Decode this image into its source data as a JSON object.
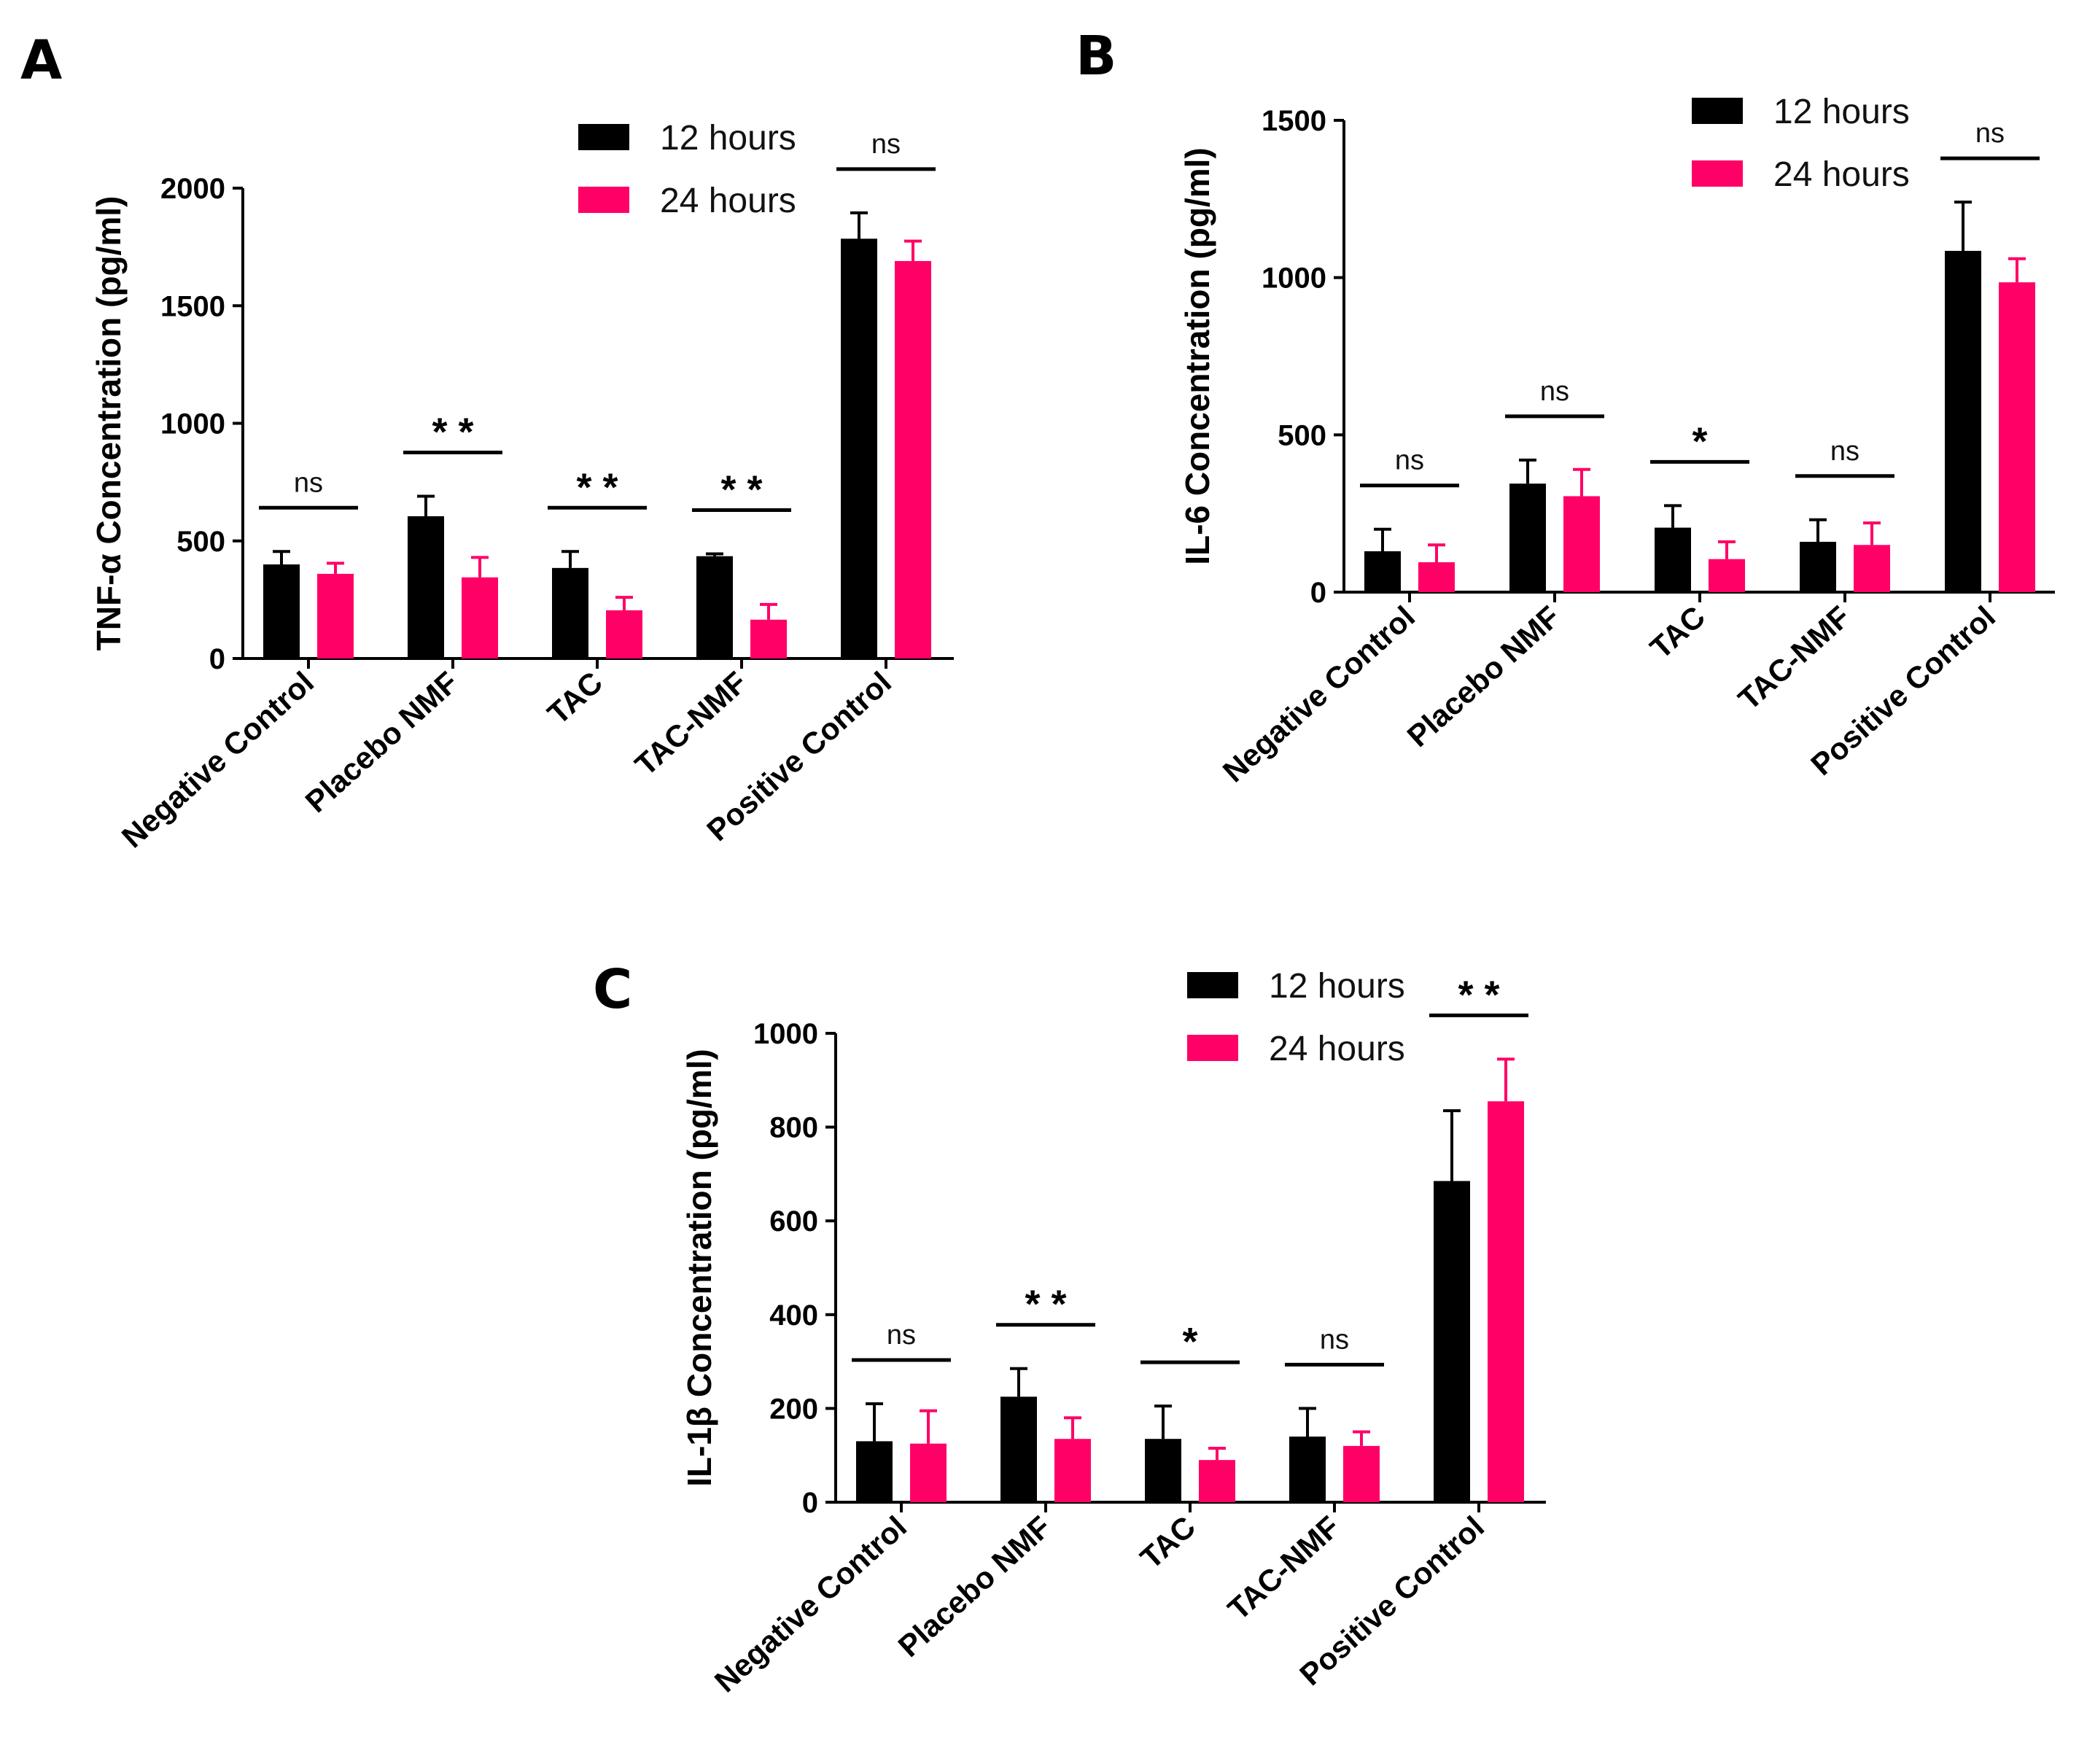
{
  "chart_data": [
    {
      "panel": "A",
      "type": "bar",
      "ylabel": "TNF-α Concentration (pg/ml)",
      "ylim": [
        0,
        2000
      ],
      "yticks": [
        0,
        500,
        1000,
        1500,
        2000
      ],
      "categories": [
        "Negative Control",
        "Placebo NMF",
        "TAC",
        "TAC-NMF",
        "Positive Control"
      ],
      "series": [
        {
          "name": "12 hours",
          "color": "#000000",
          "values": [
            400,
            605,
            385,
            435,
            1785
          ],
          "errors": [
            55,
            85,
            70,
            10,
            110
          ]
        },
        {
          "name": "24 hours",
          "color": "#ff0066",
          "values": [
            360,
            345,
            205,
            165,
            1690
          ],
          "errors": [
            45,
            85,
            55,
            65,
            85
          ]
        }
      ],
      "significance": [
        "ns",
        "**",
        "**",
        "**",
        "ns"
      ]
    },
    {
      "panel": "B",
      "type": "bar",
      "ylabel": "IL-6 Concentration (pg/ml)",
      "ylim": [
        0,
        1500
      ],
      "yticks": [
        0,
        500,
        1000,
        1500
      ],
      "categories": [
        "Negative Control",
        "Placebo NMF",
        "TAC",
        "TAC-NMF",
        "Positive Control"
      ],
      "series": [
        {
          "name": "12 hours",
          "color": "#000000",
          "values": [
            130,
            345,
            205,
            160,
            1085
          ],
          "errors": [
            70,
            75,
            70,
            70,
            155
          ]
        },
        {
          "name": "24 hours",
          "color": "#ff0066",
          "values": [
            95,
            305,
            105,
            150,
            985
          ],
          "errors": [
            55,
            85,
            55,
            70,
            75
          ]
        }
      ],
      "significance": [
        "ns",
        "ns",
        "*",
        "ns",
        "ns"
      ]
    },
    {
      "panel": "C",
      "type": "bar",
      "ylabel": "IL-1β Concentration (pg/ml)",
      "ylim": [
        0,
        1000
      ],
      "yticks": [
        0,
        200,
        400,
        600,
        800,
        1000
      ],
      "categories": [
        "Negative Control",
        "Placebo NMF",
        "TAC",
        "TAC-NMF",
        "Positive Control"
      ],
      "series": [
        {
          "name": "12 hours",
          "color": "#000000",
          "values": [
            130,
            225,
            135,
            140,
            685
          ],
          "errors": [
            80,
            60,
            70,
            60,
            150
          ]
        },
        {
          "name": "24 hours",
          "color": "#ff0066",
          "values": [
            125,
            135,
            90,
            120,
            855
          ],
          "errors": [
            70,
            45,
            25,
            30,
            90
          ]
        }
      ],
      "significance": [
        "ns",
        "**",
        "*",
        "ns",
        "**"
      ]
    }
  ]
}
